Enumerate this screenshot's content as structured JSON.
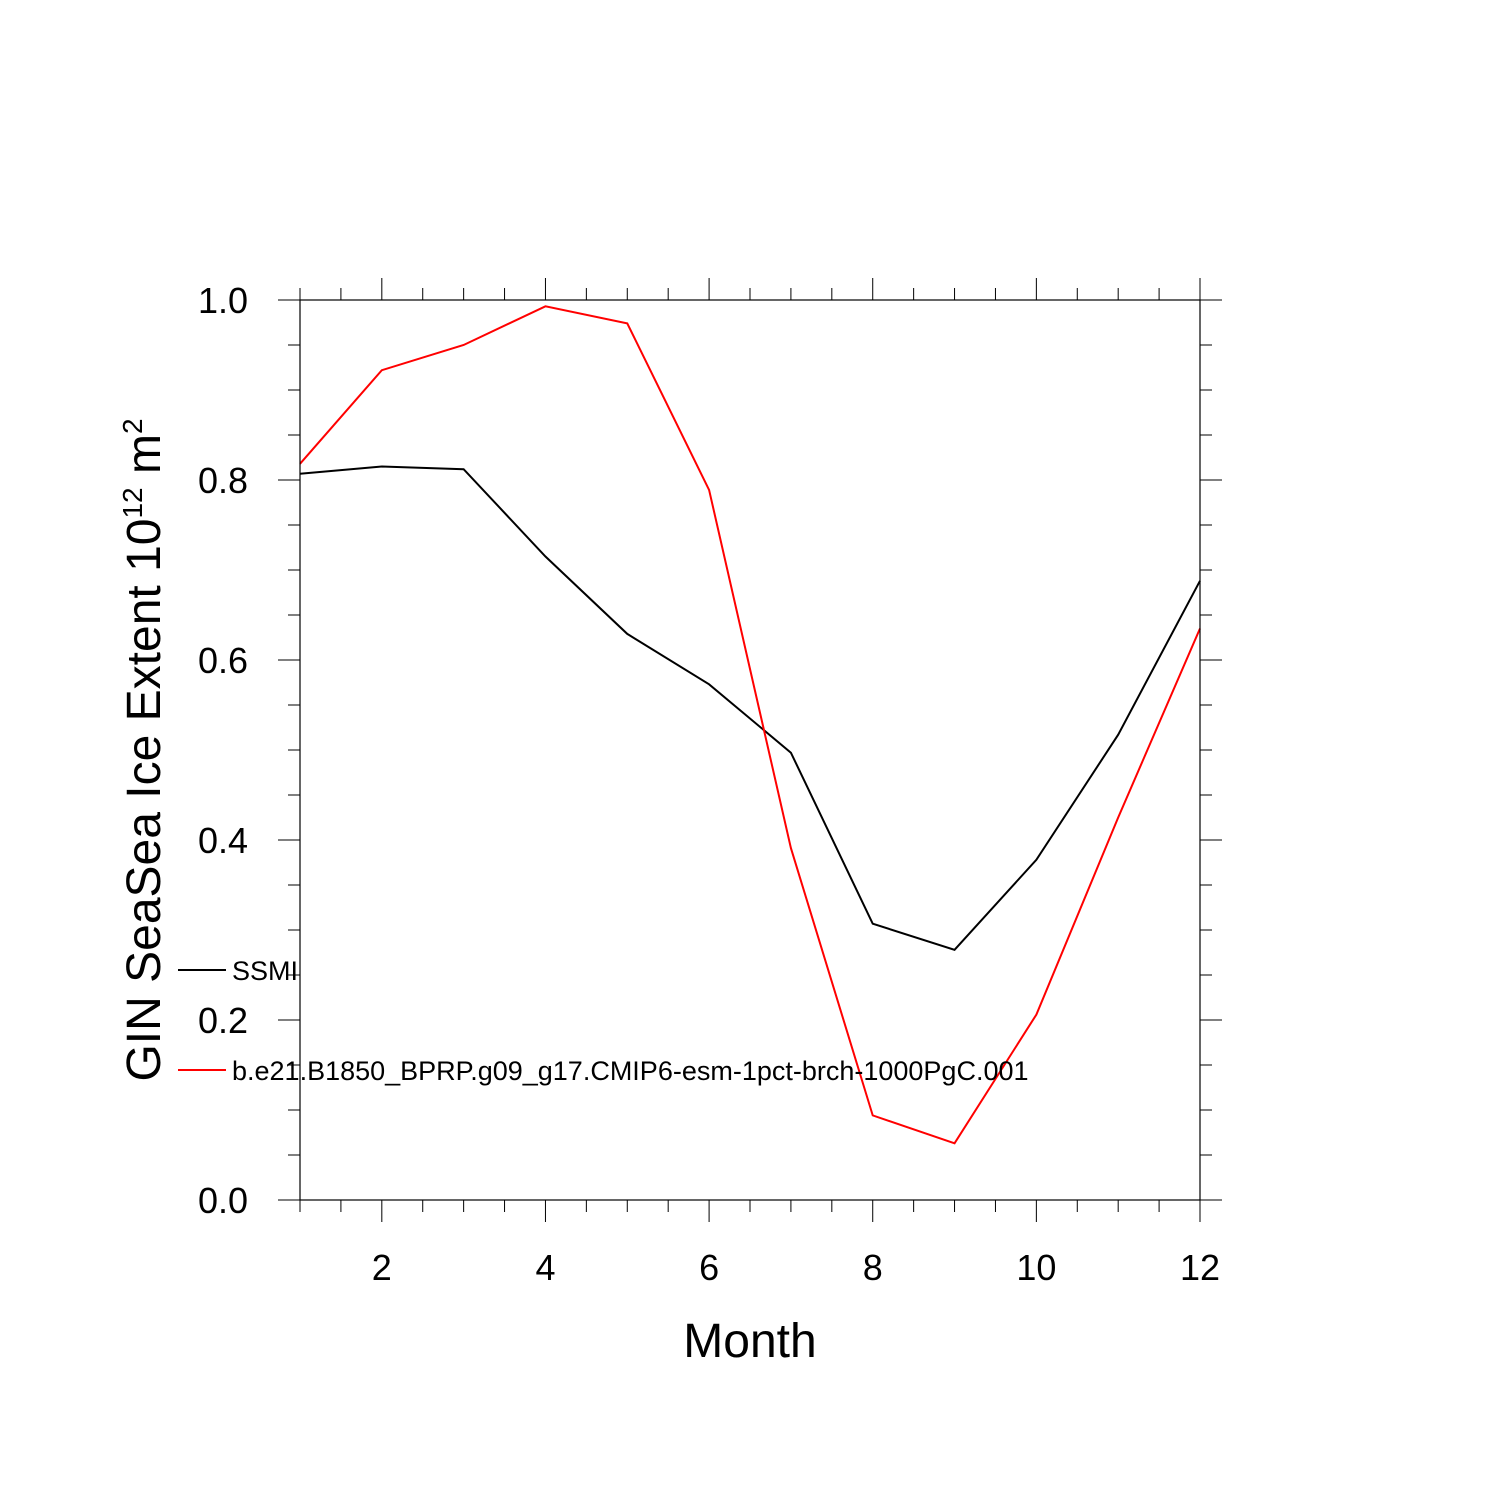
{
  "chart_data": {
    "type": "line",
    "title": "",
    "xlabel": "Month",
    "ylabel_main": "GIN SeaSea Ice Extent 10",
    "ylabel_exp": "12",
    "ylabel_unit": " m",
    "ylabel_unit_exp": "2",
    "xlim": [
      1,
      12
    ],
    "ylim": [
      0.0,
      1.0
    ],
    "x_ticks": [
      2,
      4,
      6,
      8,
      10,
      12
    ],
    "x_tick_labels": [
      "2",
      "4",
      "6",
      "8",
      "10",
      "12"
    ],
    "y_ticks": [
      0.0,
      0.2,
      0.4,
      0.6,
      0.8,
      1.0
    ],
    "y_tick_labels": [
      "0.0",
      "0.2",
      "0.4",
      "0.6",
      "0.8",
      "1.0"
    ],
    "grid": false,
    "legend_position": "lower-left",
    "x": [
      1,
      2,
      3,
      4,
      5,
      6,
      7,
      8,
      9,
      10,
      11,
      12
    ],
    "series": [
      {
        "name": "SSMI",
        "color": "#000000",
        "values": [
          0.807,
          0.815,
          0.812,
          0.715,
          0.629,
          0.573,
          0.497,
          0.307,
          0.278,
          0.378,
          0.517,
          0.688
        ]
      },
      {
        "name": "b.e21.B1850_BPRP.g09_g17.CMIP6-esm-1pct-brch-1000PgC.001",
        "color": "#ff0000",
        "values": [
          0.818,
          0.922,
          0.95,
          0.993,
          0.974,
          0.789,
          0.391,
          0.094,
          0.063,
          0.206,
          0.425,
          0.635
        ]
      }
    ]
  }
}
